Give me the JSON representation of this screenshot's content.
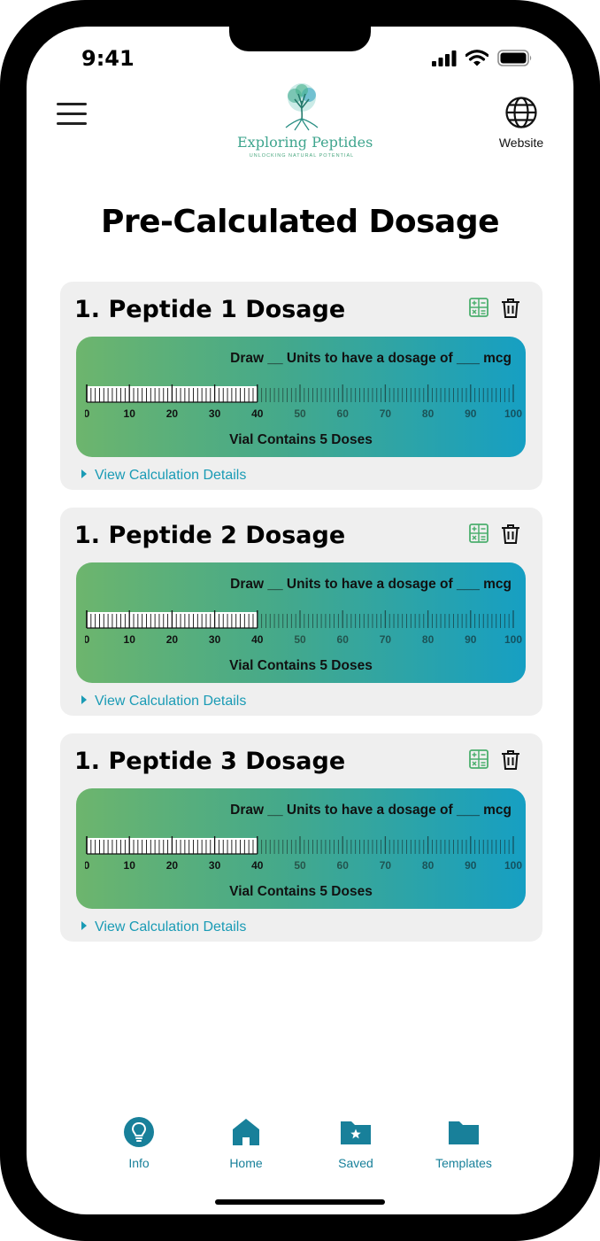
{
  "status_bar": {
    "time": "9:41"
  },
  "header": {
    "logo_title": "Exploring Peptides",
    "logo_subtitle": "UNLOCKING NATURAL POTENTIAL",
    "website_label": "Website"
  },
  "page": {
    "title": "Pre-Calculated Dosage"
  },
  "ruler": {
    "labels": [
      "0",
      "10",
      "20",
      "30",
      "40",
      "50",
      "60",
      "70",
      "80",
      "90",
      "100"
    ],
    "max_units": 100,
    "filled_units": 40
  },
  "cards": [
    {
      "title": "1. Peptide 1 Dosage",
      "draw_text": "Draw __ Units to have a dosage of ___ mcg",
      "vial_text": "Vial Contains 5 Doses",
      "details_label": "View Calculation Details"
    },
    {
      "title": "1. Peptide 2 Dosage",
      "draw_text": "Draw __ Units to have a dosage of ___ mcg",
      "vial_text": "Vial Contains 5 Doses",
      "details_label": "View Calculation Details"
    },
    {
      "title": "1. Peptide 3 Dosage",
      "draw_text": "Draw __ Units to have a dosage of ___ mcg",
      "vial_text": "Vial Contains 5 Doses",
      "details_label": "View Calculation Details"
    }
  ],
  "nav": {
    "items": [
      {
        "label": "Info",
        "icon": "lightbulb-icon"
      },
      {
        "label": "Home",
        "icon": "home-icon"
      },
      {
        "label": "Saved",
        "icon": "folder-star-icon"
      },
      {
        "label": "Templates",
        "icon": "folder-icon"
      }
    ]
  },
  "colors": {
    "accent": "#1a9bb5",
    "nav": "#18809a",
    "gradient_start": "#6db56d",
    "gradient_end": "#169fc3",
    "calc_icon": "#4caf6e"
  }
}
